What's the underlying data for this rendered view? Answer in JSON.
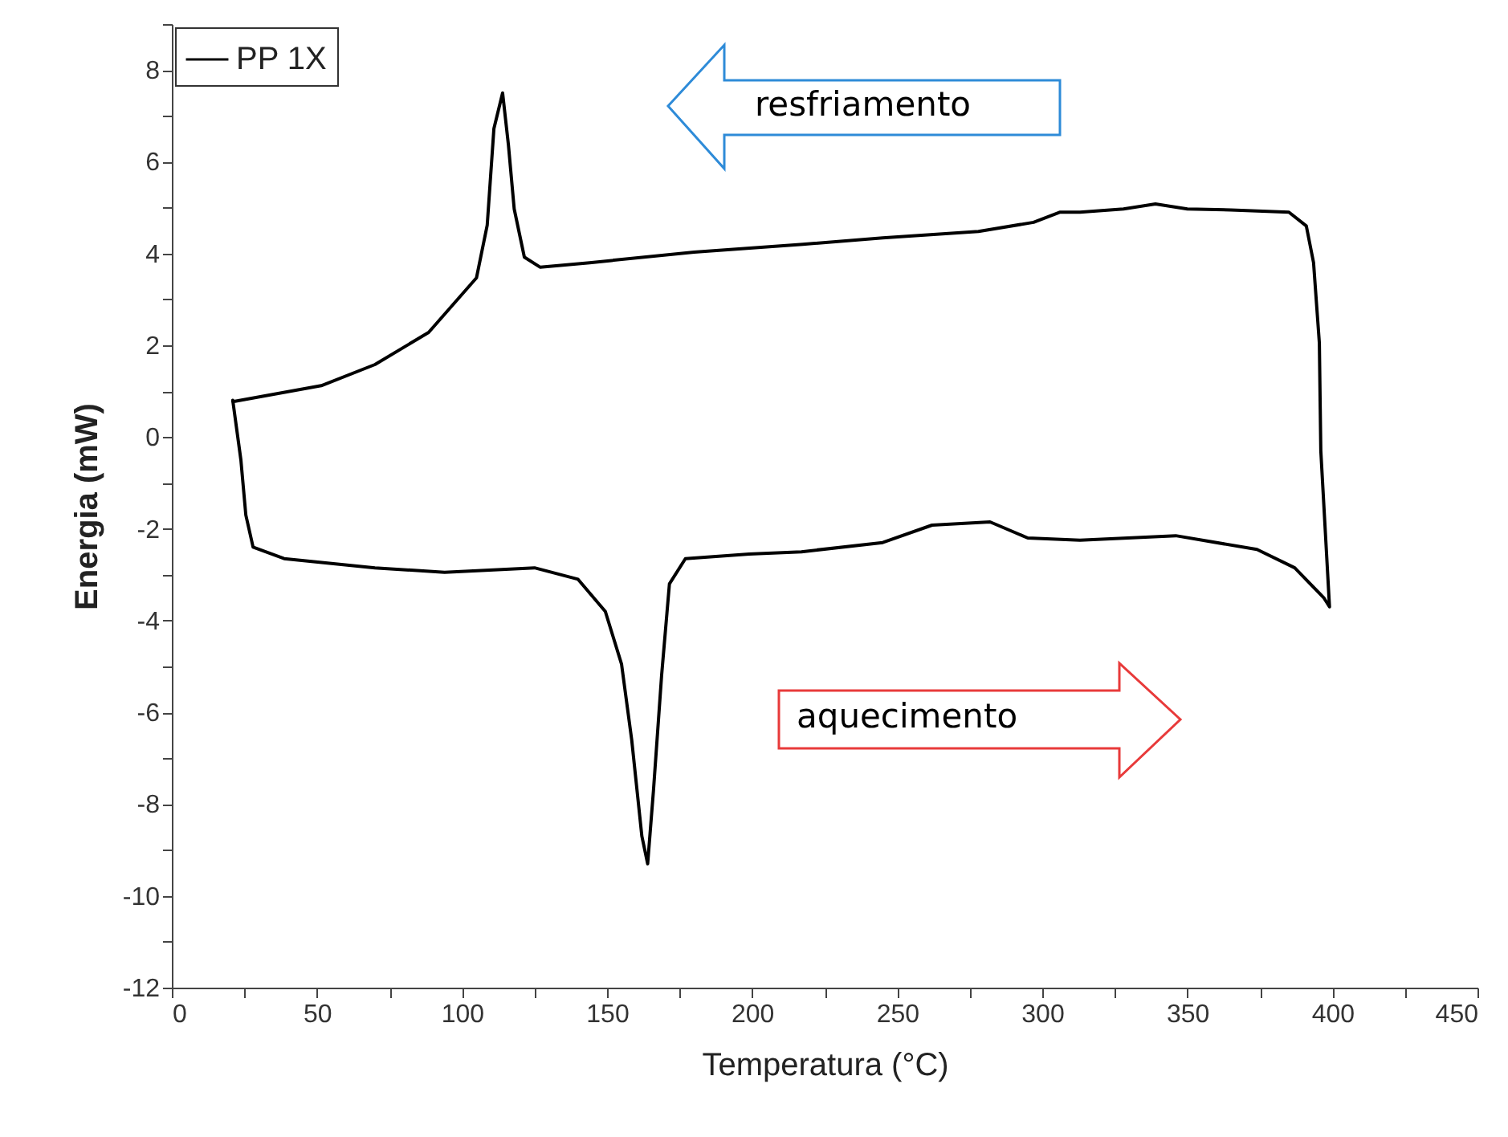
{
  "chart_data": {
    "type": "line",
    "xlabel": "Temperatura (°C)",
    "ylabel": "Energia (mW)",
    "xlim": [
      0,
      450
    ],
    "ylim": [
      -12,
      9
    ],
    "xticks": [
      0,
      {
        "value": 25,
        "label": null
      },
      50,
      {
        "value": 75,
        "label": null
      },
      100,
      {
        "value": 125,
        "label": null
      },
      150,
      {
        "value": 175,
        "label": null
      },
      200,
      {
        "value": 225,
        "label": null
      },
      250,
      {
        "value": 275,
        "label": null
      },
      300,
      {
        "value": 325,
        "label": null
      },
      350,
      {
        "value": 375,
        "label": null
      },
      400,
      {
        "value": 425,
        "label": null
      },
      450
    ],
    "yticks": [
      -12,
      {
        "value": -11,
        "label": null
      },
      -10,
      {
        "value": -9,
        "label": null
      },
      -8,
      {
        "value": -7,
        "label": null
      },
      -6,
      {
        "value": -5,
        "label": null
      },
      -4,
      {
        "value": -3,
        "label": null
      },
      -2,
      {
        "value": -1,
        "label": null
      },
      0,
      {
        "value": 1,
        "label": null
      },
      2,
      {
        "value": 3,
        "label": null
      },
      4,
      {
        "value": 5,
        "label": null
      },
      6,
      {
        "value": 7,
        "label": null
      },
      8,
      {
        "value": 9,
        "label": null
      }
    ],
    "grid": false,
    "legend": "top left",
    "marker": "none",
    "line_style": "solid",
    "series": [
      {
        "name": "PP 1X",
        "color": "#000000",
        "x": [
          21,
          23.8,
          25.5,
          28,
          38.7,
          70,
          94,
          125,
          140,
          149.4,
          155,
          158.5,
          162,
          164,
          166,
          168.8,
          171.5,
          177,
          199,
          217,
          245,
          262,
          282,
          295,
          313,
          346,
          374,
          387,
          397,
          399,
          396,
          395.5,
          393.5,
          391,
          385,
          365,
          350,
          339,
          328,
          313,
          306,
          297,
          278,
          245,
          217.5,
          180,
          144,
          127,
          121.5,
          118,
          116,
          114,
          111,
          108.7,
          105,
          88.5,
          70,
          51.5,
          21
        ],
        "values": [
          0.8,
          -0.5,
          -1.7,
          -2.4,
          -2.65,
          -2.85,
          -2.95,
          -2.85,
          -3.1,
          -3.8,
          -4.95,
          -6.6,
          -8.7,
          -9.3,
          -7.7,
          -5.2,
          -3.2,
          -2.65,
          -2.55,
          -2.5,
          -2.3,
          -1.92,
          -1.85,
          -2.2,
          -2.25,
          -2.15,
          -2.45,
          -2.85,
          -3.5,
          -3.7,
          -0.3,
          2.05,
          3.8,
          4.6,
          4.9,
          4.95,
          4.97,
          5.08,
          4.97,
          4.9,
          4.9,
          4.68,
          4.48,
          4.34,
          4.2,
          4.03,
          3.8,
          3.7,
          3.92,
          4.97,
          6.37,
          7.5,
          6.72,
          4.62,
          3.47,
          2.28,
          1.58,
          1.12,
          0.77
        ]
      }
    ],
    "annotations": [
      "resfriamento",
      "aquecimento"
    ]
  }
}
